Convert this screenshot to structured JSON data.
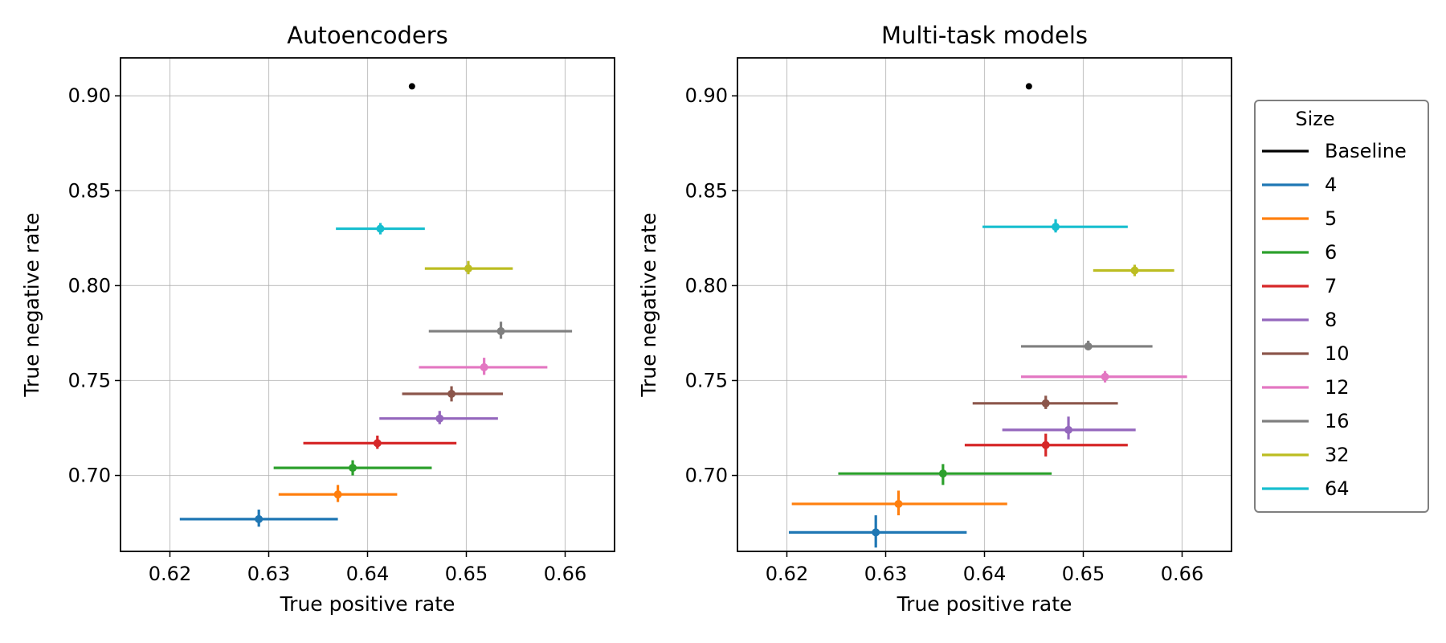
{
  "chart_data": [
    {
      "type": "scatter",
      "title": "Autoencoders",
      "xlabel": "True positive rate",
      "ylabel": "True negative rate",
      "xlim": [
        0.615,
        0.665
      ],
      "ylim": [
        0.66,
        0.92
      ],
      "xticks": [
        "0.62",
        "0.63",
        "0.64",
        "0.65",
        "0.66"
      ],
      "yticks": [
        "0.70",
        "0.75",
        "0.80",
        "0.85",
        "0.90"
      ],
      "grid": true,
      "series": [
        {
          "name": "Baseline",
          "color": "#000000",
          "x": 0.6445,
          "y": 0.905,
          "xerr": [
            0,
            0
          ],
          "yerr": [
            0,
            0
          ]
        },
        {
          "name": "4",
          "color": "#1f77b4",
          "x": 0.629,
          "y": 0.677,
          "xerr": [
            0.621,
            0.637
          ],
          "yerr": [
            0.673,
            0.682
          ]
        },
        {
          "name": "5",
          "color": "#ff7f0e",
          "x": 0.637,
          "y": 0.69,
          "xerr": [
            0.631,
            0.643
          ],
          "yerr": [
            0.686,
            0.695
          ]
        },
        {
          "name": "6",
          "color": "#2ca02c",
          "x": 0.6385,
          "y": 0.704,
          "xerr": [
            0.6305,
            0.6465
          ],
          "yerr": [
            0.7,
            0.708
          ]
        },
        {
          "name": "7",
          "color": "#d62728",
          "x": 0.641,
          "y": 0.717,
          "xerr": [
            0.6335,
            0.649
          ],
          "yerr": [
            0.714,
            0.721
          ]
        },
        {
          "name": "8",
          "color": "#9467bd",
          "x": 0.6473,
          "y": 0.73,
          "xerr": [
            0.6412,
            0.6532
          ],
          "yerr": [
            0.727,
            0.734
          ]
        },
        {
          "name": "10",
          "color": "#8c564b",
          "x": 0.6485,
          "y": 0.743,
          "xerr": [
            0.6435,
            0.6537
          ],
          "yerr": [
            0.739,
            0.747
          ]
        },
        {
          "name": "12",
          "color": "#e377c2",
          "x": 0.6518,
          "y": 0.757,
          "xerr": [
            0.6452,
            0.6582
          ],
          "yerr": [
            0.753,
            0.762
          ]
        },
        {
          "name": "16",
          "color": "#7f7f7f",
          "x": 0.6535,
          "y": 0.776,
          "xerr": [
            0.6462,
            0.6607
          ],
          "yerr": [
            0.772,
            0.781
          ]
        },
        {
          "name": "32",
          "color": "#bcbd22",
          "x": 0.6502,
          "y": 0.809,
          "xerr": [
            0.6458,
            0.6547
          ],
          "yerr": [
            0.806,
            0.813
          ]
        },
        {
          "name": "64",
          "color": "#17becf",
          "x": 0.6413,
          "y": 0.83,
          "xerr": [
            0.6368,
            0.6458
          ],
          "yerr": [
            0.827,
            0.833
          ]
        }
      ]
    },
    {
      "type": "scatter",
      "title": "Multi-task models",
      "xlabel": "True positive rate",
      "ylabel": "True negative rate",
      "xlim": [
        0.615,
        0.665
      ],
      "ylim": [
        0.66,
        0.92
      ],
      "xticks": [
        "0.62",
        "0.63",
        "0.64",
        "0.65",
        "0.66"
      ],
      "yticks": [
        "0.70",
        "0.75",
        "0.80",
        "0.85",
        "0.90"
      ],
      "grid": true,
      "series": [
        {
          "name": "Baseline",
          "color": "#000000",
          "x": 0.6445,
          "y": 0.905,
          "xerr": [
            0,
            0
          ],
          "yerr": [
            0,
            0
          ]
        },
        {
          "name": "4",
          "color": "#1f77b4",
          "x": 0.629,
          "y": 0.67,
          "xerr": [
            0.6202,
            0.6382
          ],
          "yerr": [
            0.662,
            0.679
          ]
        },
        {
          "name": "5",
          "color": "#ff7f0e",
          "x": 0.6313,
          "y": 0.685,
          "xerr": [
            0.6205,
            0.6423
          ],
          "yerr": [
            0.679,
            0.692
          ]
        },
        {
          "name": "6",
          "color": "#2ca02c",
          "x": 0.6358,
          "y": 0.701,
          "xerr": [
            0.6252,
            0.6468
          ],
          "yerr": [
            0.695,
            0.706
          ]
        },
        {
          "name": "7",
          "color": "#d62728",
          "x": 0.6462,
          "y": 0.716,
          "xerr": [
            0.638,
            0.6545
          ],
          "yerr": [
            0.71,
            0.722
          ]
        },
        {
          "name": "8",
          "color": "#9467bd",
          "x": 0.6485,
          "y": 0.724,
          "xerr": [
            0.6418,
            0.6553
          ],
          "yerr": [
            0.719,
            0.731
          ]
        },
        {
          "name": "10",
          "color": "#8c564b",
          "x": 0.6462,
          "y": 0.738,
          "xerr": [
            0.6388,
            0.6535
          ],
          "yerr": [
            0.735,
            0.742
          ]
        },
        {
          "name": "12",
          "color": "#e377c2",
          "x": 0.6522,
          "y": 0.752,
          "xerr": [
            0.6437,
            0.6605
          ],
          "yerr": [
            0.749,
            0.755
          ]
        },
        {
          "name": "16",
          "color": "#7f7f7f",
          "x": 0.6505,
          "y": 0.768,
          "xerr": [
            0.6437,
            0.657
          ],
          "yerr": [
            0.766,
            0.771
          ]
        },
        {
          "name": "32",
          "color": "#bcbd22",
          "x": 0.6552,
          "y": 0.808,
          "xerr": [
            0.651,
            0.6592
          ],
          "yerr": [
            0.805,
            0.811
          ]
        },
        {
          "name": "64",
          "color": "#17becf",
          "x": 0.6472,
          "y": 0.831,
          "xerr": [
            0.6398,
            0.6545
          ],
          "yerr": [
            0.828,
            0.835
          ]
        }
      ]
    }
  ],
  "legend": {
    "title": "Size",
    "placement": "right",
    "entries": [
      {
        "label": "Baseline",
        "color": "#000000"
      },
      {
        "label": "4",
        "color": "#1f77b4"
      },
      {
        "label": "5",
        "color": "#ff7f0e"
      },
      {
        "label": "6",
        "color": "#2ca02c"
      },
      {
        "label": "7",
        "color": "#d62728"
      },
      {
        "label": "8",
        "color": "#9467bd"
      },
      {
        "label": "10",
        "color": "#8c564b"
      },
      {
        "label": "12",
        "color": "#e377c2"
      },
      {
        "label": "16",
        "color": "#7f7f7f"
      },
      {
        "label": "32",
        "color": "#bcbd22"
      },
      {
        "label": "64",
        "color": "#17becf"
      }
    ]
  }
}
